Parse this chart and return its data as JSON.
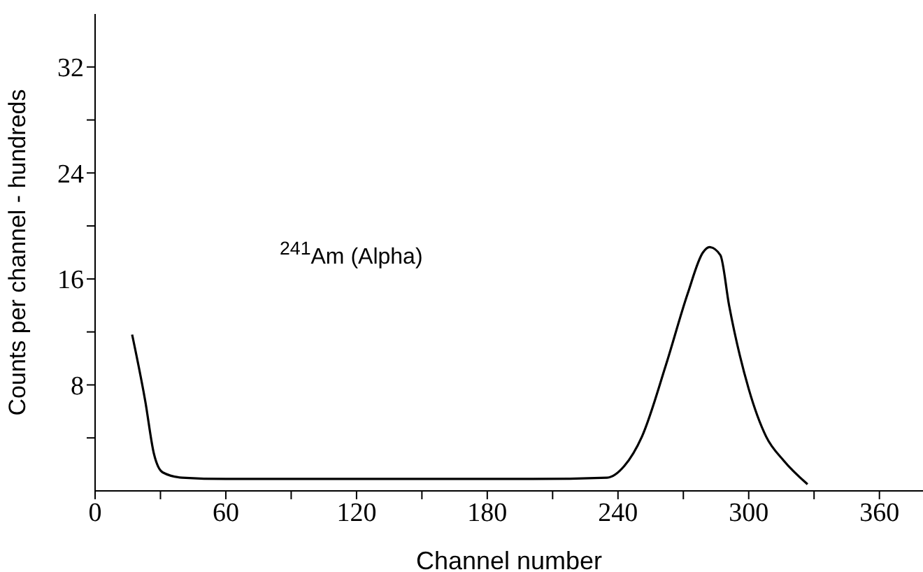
{
  "chart_data": {
    "type": "line",
    "xlabel": "Channel number",
    "ylabel": "Counts per channel - hundreds",
    "annotations": [
      "$^{241}$Am (Alpha)"
    ],
    "xlim": [
      0,
      380
    ],
    "xticks": [
      0,
      {
        "value": 30,
        "label": null
      },
      60,
      {
        "value": 90,
        "label": null
      },
      120,
      {
        "value": 150,
        "label": null
      },
      180,
      {
        "value": 210,
        "label": null
      },
      240,
      {
        "value": 270,
        "label": null
      },
      300,
      {
        "value": 330,
        "label": null
      },
      360
    ],
    "ylim": [
      0,
      36
    ],
    "yticks": [
      {
        "value": 4,
        "label": null
      },
      8,
      {
        "value": 12,
        "label": null
      },
      16,
      {
        "value": 20,
        "label": null
      },
      24,
      {
        "value": 28,
        "label": null
      },
      32
    ],
    "series": [
      {
        "color": "#000000",
        "x": [
          17,
          23,
          27,
          31,
          40,
          60,
          100,
          150,
          200,
          235,
          243,
          251,
          262,
          272,
          279,
          282,
          287,
          291,
          300,
          308,
          316,
          327
        ],
        "values": [
          11.8,
          6.8,
          2.8,
          1.4,
          1.0,
          0.9,
          0.9,
          0.9,
          0.9,
          1.0,
          1.9,
          4.1,
          9.5,
          14.9,
          18.0,
          18.4,
          17.8,
          14.0,
          7.7,
          4.1,
          2.3,
          0.5
        ]
      }
    ]
  }
}
